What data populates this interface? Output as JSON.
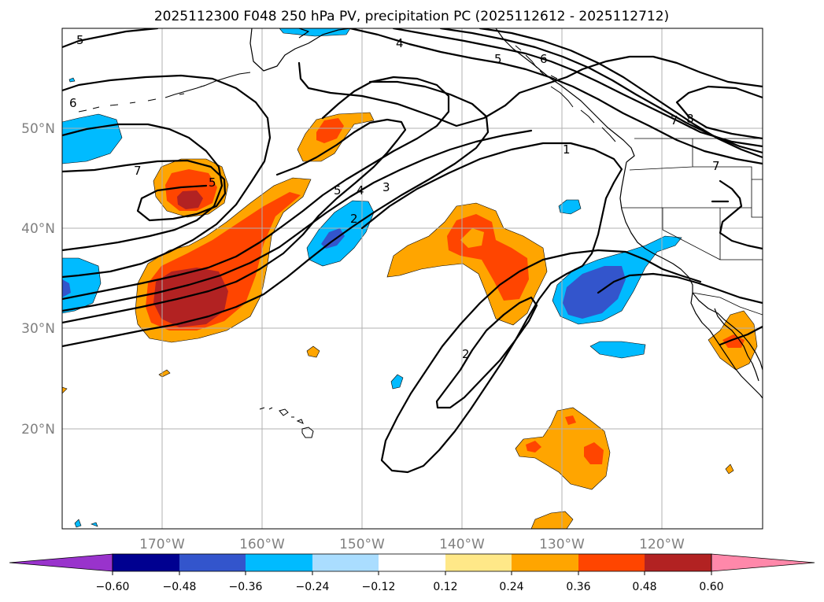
{
  "title": "2025112300 F048 250 hPa PV, precipitation PC (2025112612 - 2025112712)",
  "map": {
    "lat_range": [
      10,
      60
    ],
    "lon_range": [
      -180,
      -110
    ],
    "lat_ticks": [
      {
        "value": 50,
        "label": "50°N"
      },
      {
        "value": 40,
        "label": "40°N"
      },
      {
        "value": 30,
        "label": "30°N"
      },
      {
        "value": 20,
        "label": "20°N"
      }
    ],
    "lon_ticks": [
      {
        "value": -170,
        "label": "170°W"
      },
      {
        "value": -160,
        "label": "160°W"
      },
      {
        "value": -150,
        "label": "150°W"
      },
      {
        "value": -140,
        "label": "140°W"
      },
      {
        "value": -130,
        "label": "130°W"
      },
      {
        "value": -120,
        "label": "120°W"
      }
    ],
    "grid": true,
    "contour_labels": [
      "5",
      "4",
      "6",
      "5",
      "6",
      "7",
      "7",
      "8",
      "7",
      "5",
      "5",
      "4",
      "3",
      "2",
      "1",
      "2"
    ]
  },
  "colorbar": {
    "ticks": [
      "−0.60",
      "−0.48",
      "−0.36",
      "−0.24",
      "−0.12",
      "0.12",
      "0.24",
      "0.36",
      "0.48",
      "0.60"
    ],
    "colors": [
      "#9933cc",
      "#000090",
      "#3355cc",
      "#00bbff",
      "#aaddff",
      "#ffffff",
      "#ffe888",
      "#ffa500",
      "#ff4500",
      "#b22222",
      "#ff88aa"
    ],
    "extend": "both"
  }
}
